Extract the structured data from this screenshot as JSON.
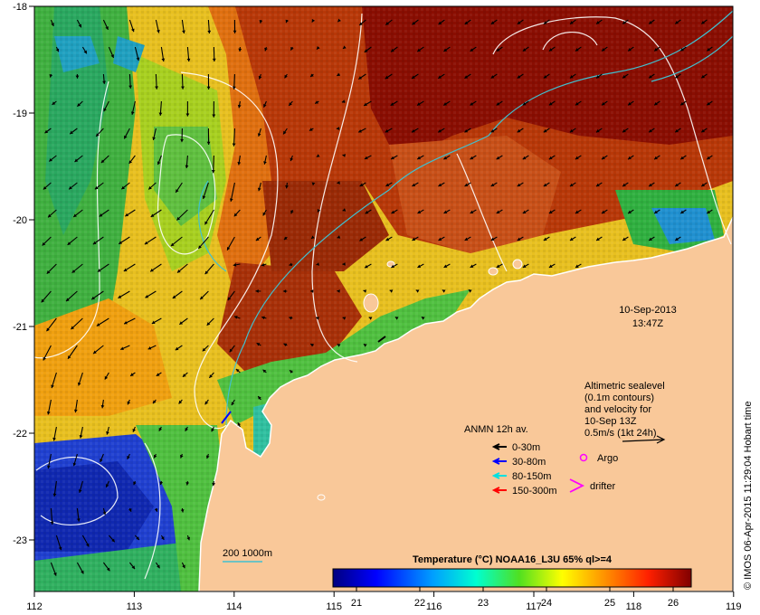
{
  "map": {
    "date": "10-Sep-2013",
    "time": "13:47Z",
    "lon_ticks": [
      "112",
      "113",
      "114",
      "115",
      "116",
      "117",
      "118",
      "119"
    ],
    "lat_ticks": [
      "-18",
      "-19",
      "-20",
      "-21",
      "-22",
      "-23"
    ],
    "altimetry_note": [
      "Altimetric sealevel",
      "(0.1m contours)",
      "and velocity for",
      "10-Sep 13Z",
      "0.5m/s (1kt 24h)"
    ],
    "anmn_title": "ANMN 12h av.",
    "anmn_legend": [
      {
        "label": "0-30m",
        "color": "#000000"
      },
      {
        "label": "30-80m",
        "color": "#0000ff"
      },
      {
        "label": "80-150m",
        "color": "#00e0e0"
      },
      {
        "label": "150-300m",
        "color": "#ff0000"
      }
    ],
    "argo_label": "Argo",
    "argo_color": "#ff00ff",
    "drifter_label": "drifter",
    "drifter_color": "#ff00ff",
    "bathy_label": "200  1000m",
    "colorbar_title": "Temperature (°C) NOAA16_L3U 65% ql>=4",
    "colorbar_ticks": [
      "21",
      "22",
      "23",
      "24",
      "25",
      "26"
    ],
    "credit": "© IMOS 06-Apr-2015 11:29:04 Hobart time",
    "land_color": "#f9c899"
  }
}
